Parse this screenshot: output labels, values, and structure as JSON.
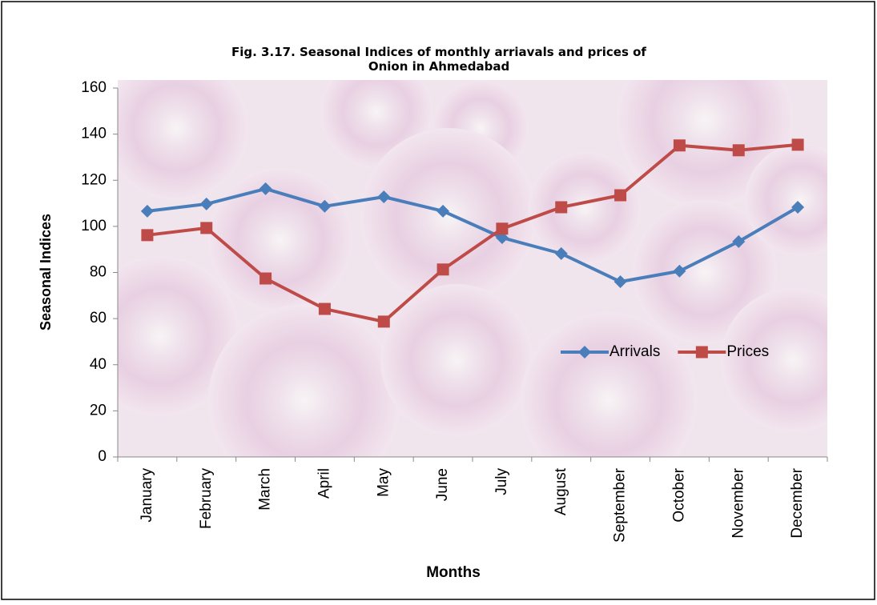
{
  "chart_data": {
    "type": "line",
    "title": "Fig. 3.17. Seasonal Indices of monthly arriavals  and prices of Onion in Ahmedabad",
    "x_label": "Months",
    "y_label": "Seasonal Indices",
    "categories": [
      "January",
      "February",
      "March",
      "April",
      "May",
      "June",
      "July",
      "August",
      "September",
      "October",
      "November",
      "December"
    ],
    "series": [
      {
        "name": "Arrivals",
        "color": "#4a7ebb",
        "marker": "diamond",
        "values": [
          106.6,
          109.7,
          116.3,
          108.7,
          112.8,
          106.6,
          95.1,
          88.2,
          76.0,
          80.6,
          93.4,
          108.3
        ]
      },
      {
        "name": "Prices",
        "color": "#be4b48",
        "marker": "square",
        "values": [
          96.2,
          99.3,
          77.4,
          64.2,
          58.7,
          81.3,
          99.0,
          108.3,
          113.5,
          135.1,
          133.0,
          135.4
        ]
      }
    ],
    "ylim": [
      0,
      160
    ],
    "yticks": [
      0,
      20,
      40,
      60,
      80,
      100,
      120,
      140,
      160
    ],
    "grid": false,
    "legend": "right"
  }
}
